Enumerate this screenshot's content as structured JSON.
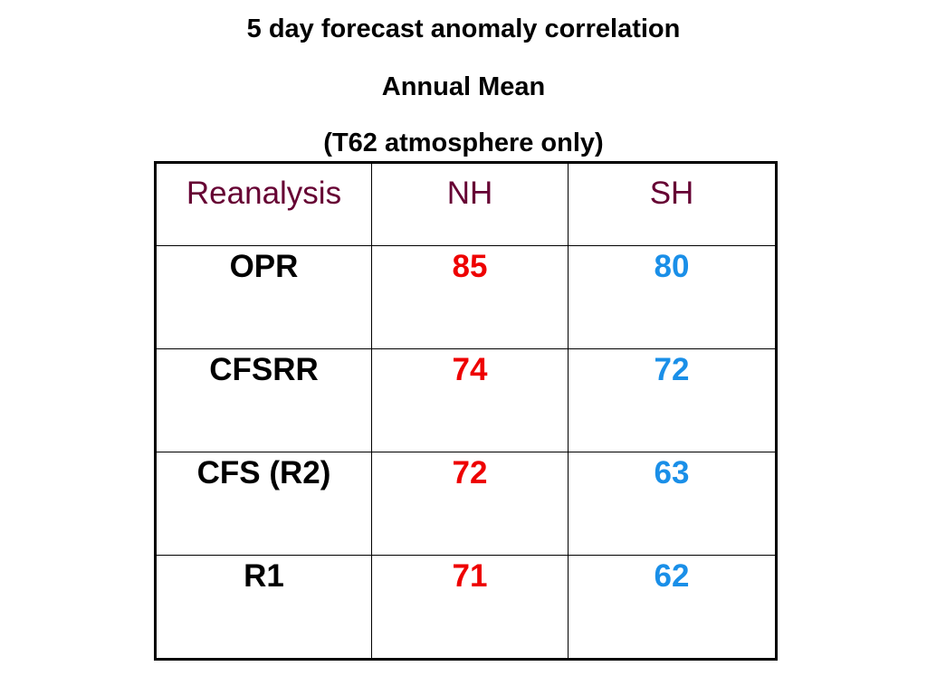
{
  "header": {
    "title": "5 day forecast anomaly correlation",
    "subtitle": "Annual Mean",
    "note": "(T62 atmosphere only)"
  },
  "table": {
    "columns": [
      "Reanalysis",
      "NH",
      "SH"
    ],
    "rows": [
      [
        "OPR",
        85,
        80
      ],
      [
        "CFSRR",
        74,
        72
      ],
      [
        "CFS (R2)",
        72,
        63
      ],
      [
        "R1",
        71,
        62
      ]
    ]
  }
}
